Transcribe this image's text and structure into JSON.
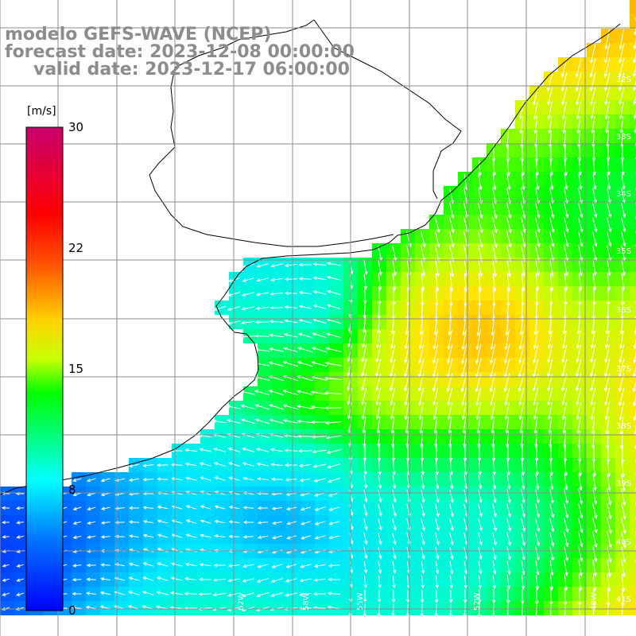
{
  "title": {
    "line1": "modelo GEFS-WAVE (NCEP)",
    "line2": "forecast date: 2023-12-08 00:00:00",
    "line3": "valid date: 2023-12-17 06:00:00"
  },
  "colorbar": {
    "unit": "[m/s]",
    "ticks": [
      "30",
      "22",
      "15",
      "8",
      "0"
    ],
    "colors": [
      "#0000ff",
      "#00aaff",
      "#00ffff",
      "#00ff00",
      "#ffff00",
      "#ff8000",
      "#ff0000",
      "#c8006e"
    ]
  },
  "map": {
    "lat_labels": [
      "32S",
      "33S",
      "34S",
      "35S",
      "36S",
      "37S",
      "38S",
      "39S",
      "40S",
      "41S"
    ],
    "lon_labels": [
      "62W",
      "58W",
      "55W",
      "52W",
      "48W"
    ],
    "land_color": "#ffffff",
    "grid_color": "#8c8c8c"
  }
}
